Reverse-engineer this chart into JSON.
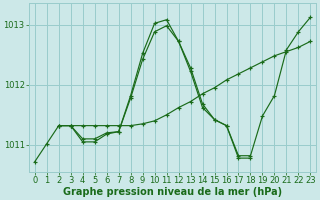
{
  "title": "Graphe pression niveau de la mer (hPa)",
  "bg_color": "#cce8e8",
  "grid_color": "#99cccc",
  "line_color": "#1a6b1a",
  "marker_color": "#1a6b1a",
  "xlim": [
    -0.5,
    23.5
  ],
  "ylim": [
    1010.55,
    1013.35
  ],
  "yticks": [
    1011,
    1012,
    1013
  ],
  "xticks": [
    0,
    1,
    2,
    3,
    4,
    5,
    6,
    7,
    8,
    9,
    10,
    11,
    12,
    13,
    14,
    15,
    16,
    17,
    18,
    19,
    20,
    21,
    22,
    23
  ],
  "series": [
    {
      "x": [
        0,
        1,
        2,
        3,
        4,
        5,
        6,
        7,
        8,
        9,
        10,
        11,
        12,
        13,
        14,
        15,
        16,
        17,
        18,
        19,
        20,
        21,
        22,
        23
      ],
      "y": [
        1010.72,
        1011.02,
        1011.32,
        1011.32,
        1011.1,
        1011.1,
        1011.2,
        1011.22,
        1011.82,
        1012.52,
        1013.02,
        1013.08,
        1012.72,
        1012.28,
        1011.68,
        1011.42,
        1011.32,
        1010.82,
        1010.82,
        1011.48,
        1011.82,
        1012.58,
        1012.88,
        1013.12
      ]
    },
    {
      "x": [
        2,
        3,
        4,
        5,
        6,
        7,
        8,
        9,
        10,
        11,
        12,
        13,
        14,
        15,
        16,
        17,
        18,
        19,
        20,
        21,
        22,
        23
      ],
      "y": [
        1011.32,
        1011.32,
        1011.32,
        1011.32,
        1011.32,
        1011.32,
        1011.32,
        1011.35,
        1011.4,
        1011.5,
        1011.62,
        1011.72,
        1011.85,
        1011.95,
        1012.08,
        1012.18,
        1012.28,
        1012.38,
        1012.48,
        1012.55,
        1012.62,
        1012.72
      ]
    },
    {
      "x": [
        2,
        3,
        4,
        5,
        6,
        7,
        8,
        9,
        10,
        11,
        12,
        13,
        14,
        15,
        16,
        17,
        18
      ],
      "y": [
        1011.32,
        1011.32,
        1011.05,
        1011.05,
        1011.18,
        1011.22,
        1011.78,
        1012.42,
        1012.88,
        1012.98,
        1012.72,
        1012.22,
        1011.62,
        1011.42,
        1011.32,
        1010.78,
        1010.78
      ]
    }
  ],
  "xlabel_fontsize": 7.0,
  "tick_fontsize": 6.0,
  "label_color": "#1a6b1a",
  "title_color": "#1a6b1a"
}
